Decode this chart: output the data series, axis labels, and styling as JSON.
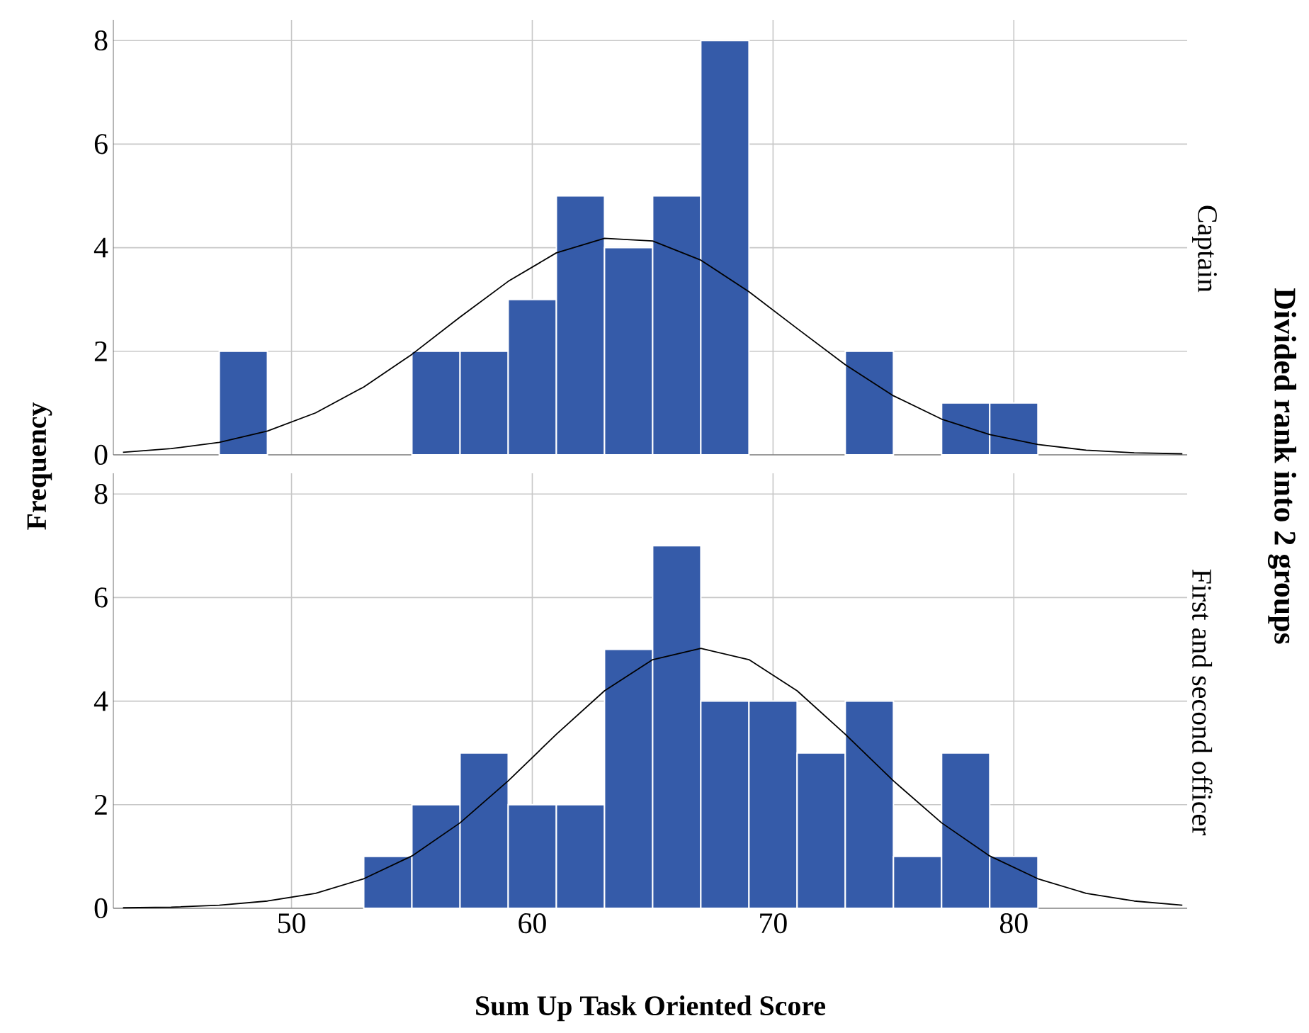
{
  "chart_data": [
    {
      "type": "histogram",
      "title": "Captain",
      "ylabel": "Frequency",
      "annotations": [
        "Divided rank into 2 groups"
      ],
      "bins": [
        47,
        49,
        51,
        53,
        55,
        57,
        59,
        61,
        63,
        65,
        67,
        69,
        71,
        73,
        75,
        77,
        79,
        81
      ],
      "values": [
        2,
        0,
        0,
        0,
        2,
        2,
        3,
        5,
        4,
        5,
        8,
        0,
        0,
        2,
        0,
        1,
        1
      ],
      "color": "#355ba9",
      "series": [
        {
          "type": "line",
          "color": "#000000",
          "x": [
            43,
            45,
            47,
            49,
            51,
            53,
            55,
            57,
            59,
            61,
            63,
            65,
            67,
            69,
            71,
            73,
            75,
            77,
            79,
            81,
            83,
            85,
            87
          ],
          "values": [
            0.05,
            0.12,
            0.24,
            0.46,
            0.81,
            1.31,
            1.94,
            2.66,
            3.35,
            3.9,
            4.18,
            4.13,
            3.76,
            3.15,
            2.44,
            1.74,
            1.14,
            0.69,
            0.39,
            0.2,
            0.09,
            0.04,
            0.02
          ]
        }
      ],
      "xlim": [
        42.6,
        87.2
      ],
      "ylim": [
        0,
        8.4
      ],
      "xticks": [
        50,
        60,
        70,
        80
      ],
      "yticks": [
        0,
        2,
        4,
        6,
        8
      ],
      "tick_labels": "y",
      "grid": true,
      "marker": "none"
    },
    {
      "type": "histogram",
      "title": "First and second officer",
      "xlabel": "Sum Up Task Oriented Score",
      "bins": [
        53,
        55,
        57,
        59,
        61,
        63,
        65,
        67,
        69,
        71,
        73,
        75,
        77,
        79,
        81
      ],
      "values": [
        1,
        2,
        3,
        2,
        2,
        5,
        7,
        4,
        4,
        3,
        4,
        1,
        3,
        1
      ],
      "color": "#355ba9",
      "series": [
        {
          "type": "line",
          "color": "#000000",
          "x": [
            43,
            45,
            47,
            49,
            51,
            53,
            55,
            57,
            59,
            61,
            63,
            65,
            67,
            69,
            71,
            73,
            75,
            77,
            79,
            81,
            83,
            85,
            87
          ],
          "values": [
            0.01,
            0.02,
            0.06,
            0.14,
            0.29,
            0.57,
            1.01,
            1.65,
            2.46,
            3.36,
            4.2,
            4.8,
            5.02,
            4.8,
            4.2,
            3.36,
            2.46,
            1.65,
            1.01,
            0.57,
            0.29,
            0.14,
            0.06
          ]
        }
      ],
      "xlim": [
        42.6,
        87.2
      ],
      "ylim": [
        0,
        8.4
      ],
      "xticks": [
        50,
        60,
        70,
        80
      ],
      "yticks": [
        0,
        2,
        4,
        6,
        8
      ],
      "grid": true,
      "marker": "none"
    }
  ]
}
